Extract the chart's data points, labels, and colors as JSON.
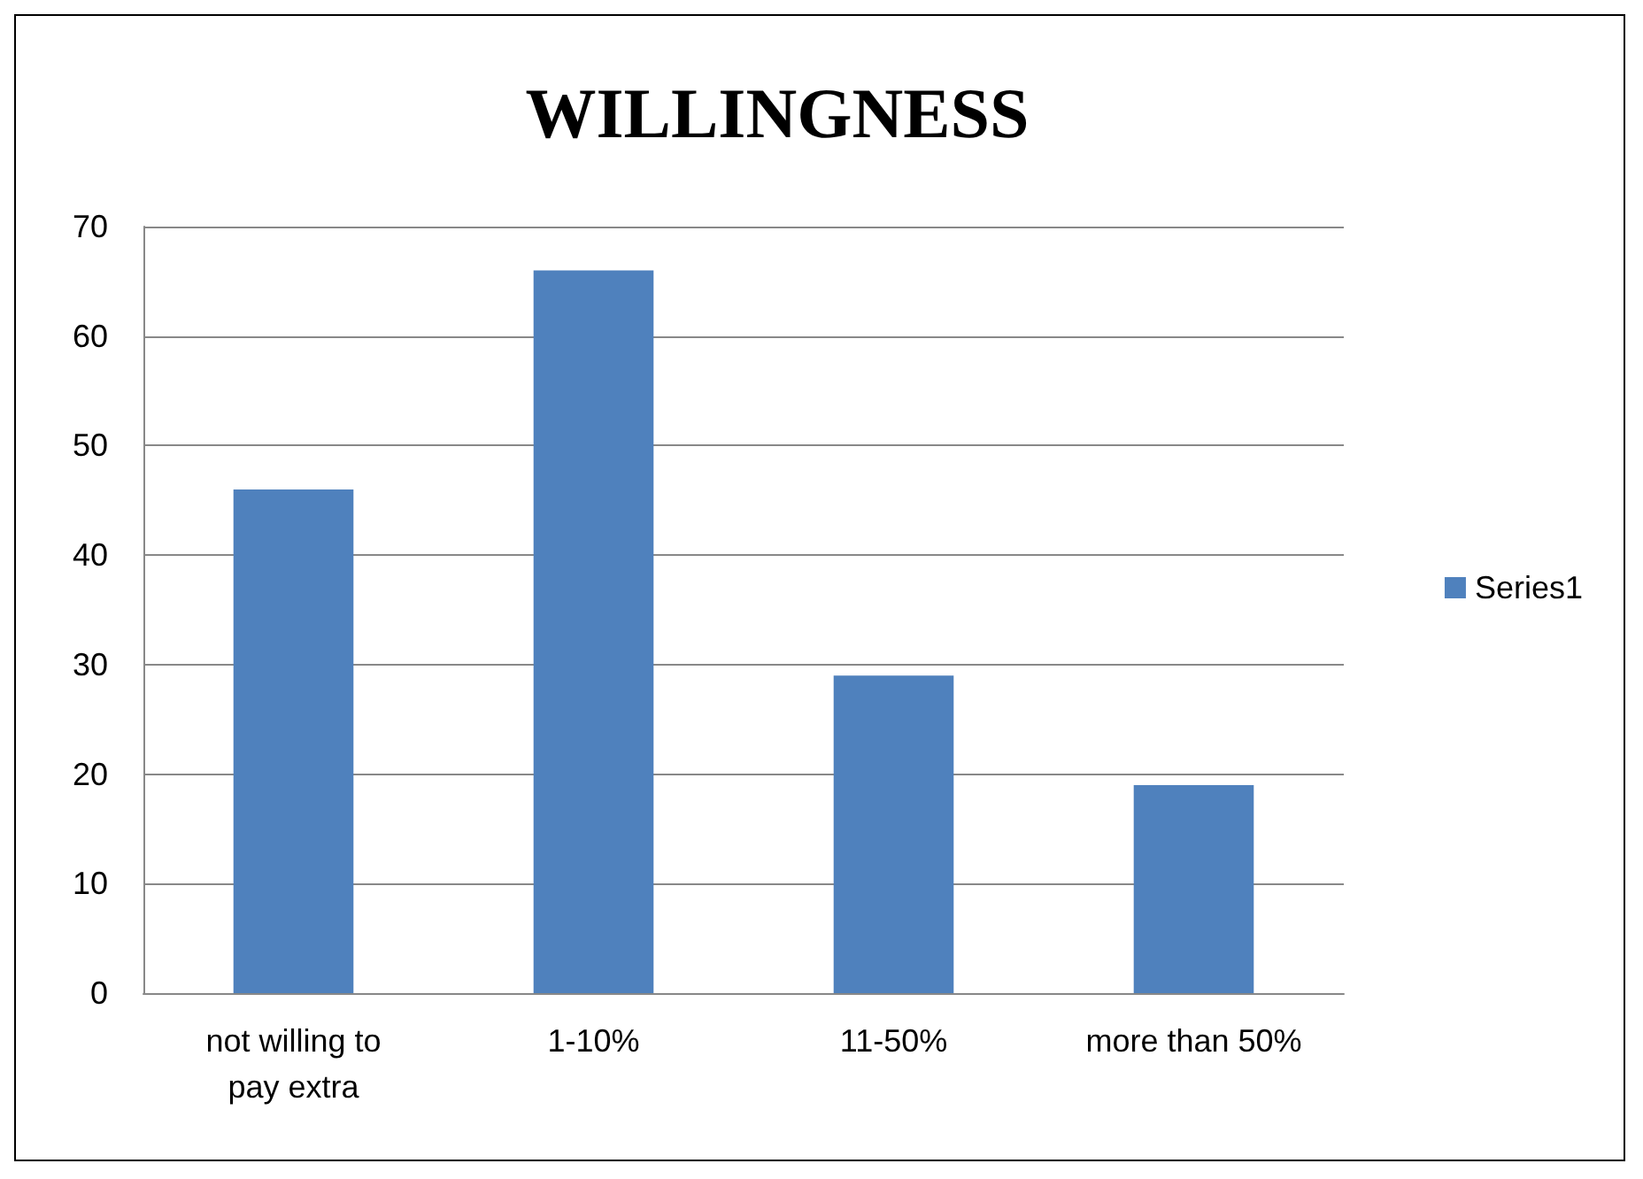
{
  "chart_data": {
    "type": "bar",
    "title": "WILLINGNESS",
    "categories": [
      "not willing to\npay extra",
      "1-10%",
      "11-50%",
      "more than 50%"
    ],
    "series": [
      {
        "name": "Series1",
        "color": "#4f81bd",
        "values": [
          46,
          66,
          29,
          19
        ]
      }
    ],
    "ylim": [
      0,
      70
    ],
    "yticks": [
      0,
      10,
      20,
      30,
      40,
      50,
      60,
      70
    ],
    "grid": "y",
    "legend": "right"
  }
}
